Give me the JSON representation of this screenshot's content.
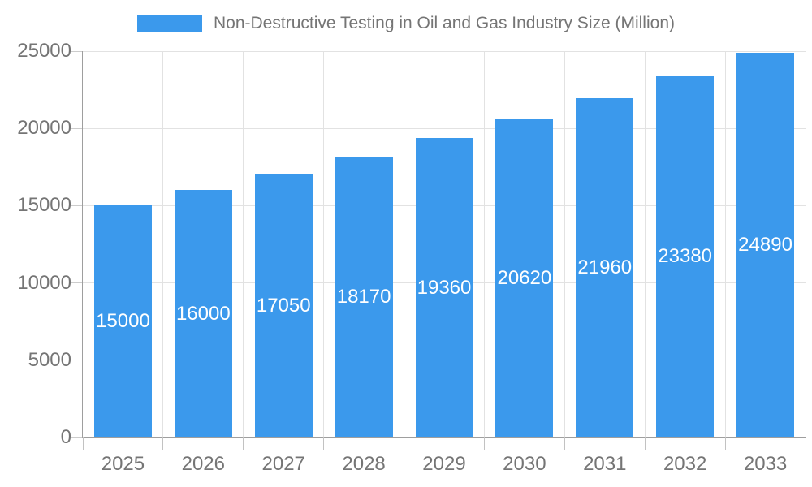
{
  "legend": {
    "label": "Non-Destructive Testing in Oil and Gas Industry Size (Million)",
    "swatch_color": "#3b99ec"
  },
  "chart_data": {
    "type": "bar",
    "title": "Non-Destructive Testing in Oil and Gas Industry Size (Million)",
    "series_name": "Non-Destructive Testing in Oil and Gas Industry Size (Million)",
    "categories": [
      "2025",
      "2026",
      "2027",
      "2028",
      "2029",
      "2030",
      "2031",
      "2032",
      "2033"
    ],
    "values": [
      15000,
      16000,
      17050,
      18170,
      19360,
      20620,
      21960,
      23380,
      24890
    ],
    "value_labels": [
      "15000",
      "16000",
      "17050",
      "18170",
      "19360",
      "20620",
      "21960",
      "23380",
      "24890"
    ],
    "xlabel": "",
    "ylabel": "",
    "ylim": [
      0,
      25000
    ],
    "ytick_interval": 5000,
    "yticks": [
      0,
      5000,
      10000,
      15000,
      20000,
      25000
    ],
    "ytick_labels": [
      "0",
      "5000",
      "10000",
      "15000",
      "20000",
      "25000"
    ],
    "grid": true,
    "legend_position": "top-center",
    "bar_color": "#3b99ec",
    "value_label_color": "#ffffff",
    "grid_color": "#e2e2e2",
    "axis_color": "#9e9e9e",
    "tick_label_color": "#757575",
    "background_color": "#ffffff"
  }
}
